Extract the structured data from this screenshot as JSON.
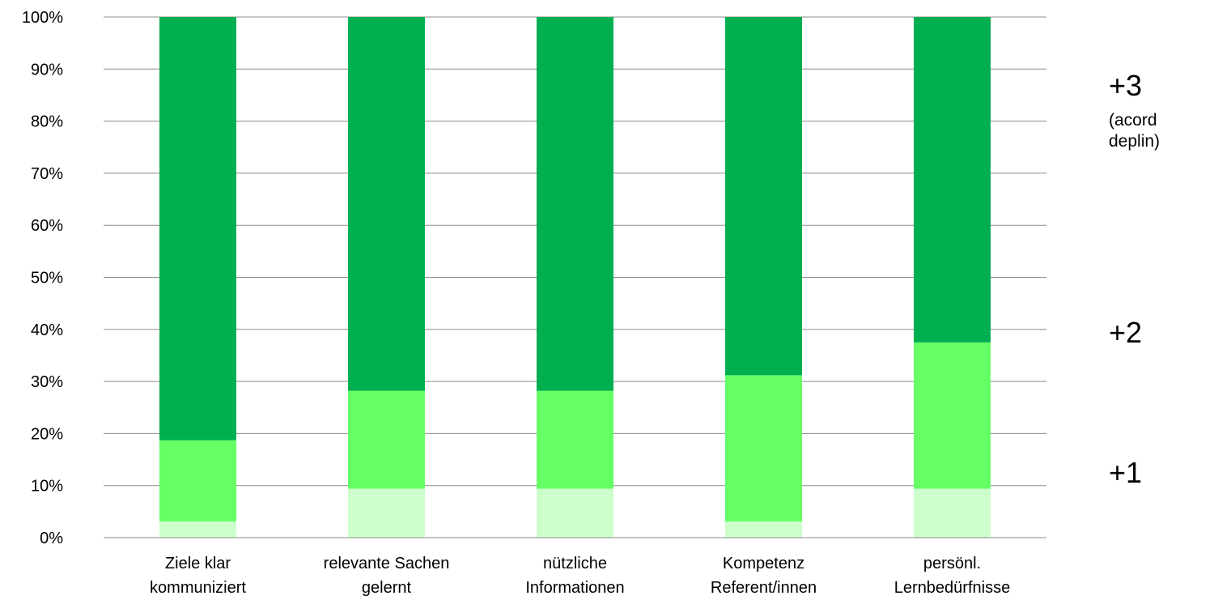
{
  "chart_data": {
    "type": "bar",
    "stacked": true,
    "normalized": true,
    "categories": [
      [
        "Ziele klar",
        "kommuniziert"
      ],
      [
        "relevante Sachen",
        "gelernt"
      ],
      [
        "nützliche",
        "Informationen"
      ],
      [
        "Kompetenz",
        "Referent/innen"
      ],
      [
        "persönl.",
        "Lernbedürfnisse"
      ]
    ],
    "series": [
      {
        "name": "+1",
        "color": "#ccffcc",
        "values": [
          3.1,
          9.4,
          9.4,
          3.1,
          9.4
        ]
      },
      {
        "name": "+2",
        "color": "#66ff66",
        "values": [
          15.6,
          18.8,
          18.8,
          28.1,
          28.1
        ]
      },
      {
        "name": "+3",
        "color": "#00b050",
        "values": [
          81.3,
          71.8,
          71.8,
          68.8,
          62.5
        ]
      }
    ],
    "yticks": [
      "0%",
      "10%",
      "20%",
      "30%",
      "40%",
      "50%",
      "60%",
      "70%",
      "80%",
      "90%",
      "100%"
    ],
    "ylim": [
      0,
      100
    ],
    "grid": true,
    "legend_placement": "right"
  },
  "side_labels": {
    "plus3": "+3",
    "plus3_note_line1": "(acord",
    "plus3_note_line2": "deplin)",
    "plus2": "+2",
    "plus1": "+1"
  }
}
